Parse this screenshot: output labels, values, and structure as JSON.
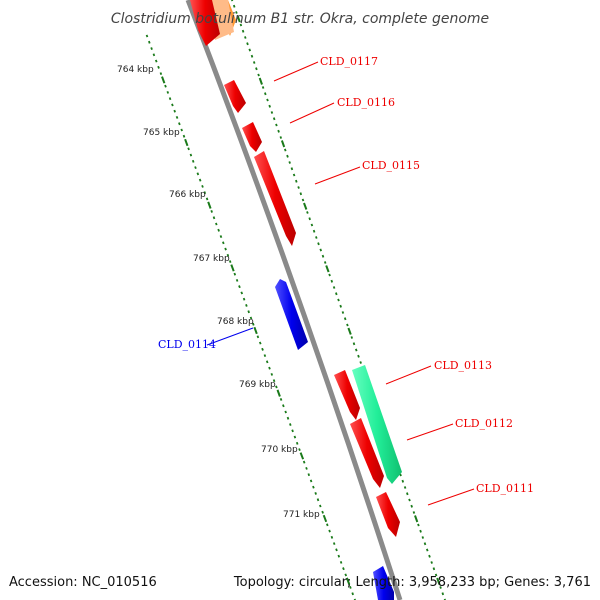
{
  "title": "Clostridium botulinum B1 str. Okra, complete genome",
  "accession": "Accession: NC_010516",
  "summary": "Topology: circular; Length: 3,958,233 bp; Genes: 3,761",
  "colors": {
    "forward_gene": "#ee0000",
    "reverse_gene": "#0000ee",
    "other_feature": "#22ee99",
    "backbone": "#8a8a8a",
    "tick": "#1a7a1a"
  },
  "kbp_labels": [
    "764 kbp",
    "765 kbp",
    "766 kbp",
    "767 kbp",
    "768 kbp",
    "769 kbp",
    "770 kbp",
    "771 kbp"
  ],
  "gene_labels": [
    {
      "id": "CLD_0117",
      "strand": "forward"
    },
    {
      "id": "CLD_0116",
      "strand": "forward"
    },
    {
      "id": "CLD_0115",
      "strand": "forward"
    },
    {
      "id": "CLD_0114",
      "strand": "reverse"
    },
    {
      "id": "CLD_0113",
      "strand": "forward"
    },
    {
      "id": "CLD_0112",
      "strand": "forward"
    },
    {
      "id": "CLD_0111",
      "strand": "forward"
    }
  ]
}
